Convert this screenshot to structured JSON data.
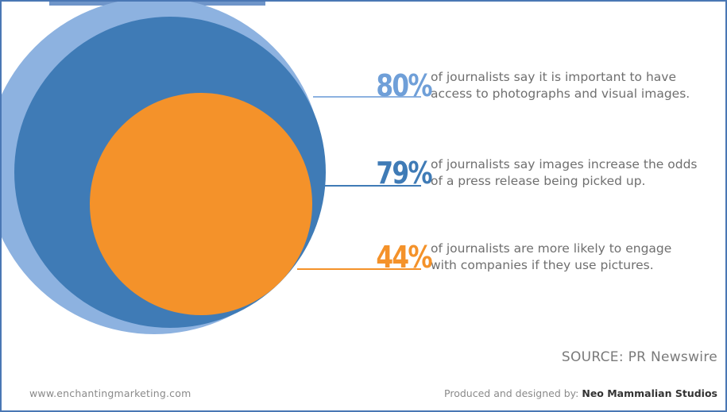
{
  "colors": {
    "outer_circle": "#8db2e0",
    "middle_circle": "#3f7bb6",
    "inner_circle": "#f4922a",
    "pct_80": "#6f9fd8",
    "pct_79": "#3f7bb6",
    "pct_44": "#f4922a",
    "connector_80": "#8db2e0",
    "connector_79": "#3f7bb6",
    "connector_44": "#f4922a"
  },
  "chart_data": {
    "type": "bubble",
    "series": [
      {
        "value": 80,
        "label": "80%",
        "text": "of journalists say it is important to have access to photographs and visual images."
      },
      {
        "value": 79,
        "label": "79%",
        "text": "of journalists say images increase the odds of a press release being picked up."
      },
      {
        "value": 44,
        "label": "44%",
        "text": "of journalists are more likely to engage with companies if they use pictures."
      }
    ]
  },
  "source": "SOURCE: PR Newswire",
  "footer": {
    "website": "www.enchantingmarketing.com",
    "produced_by": "Produced and designed by: ",
    "studio": "Neo Mammalian Studios"
  }
}
